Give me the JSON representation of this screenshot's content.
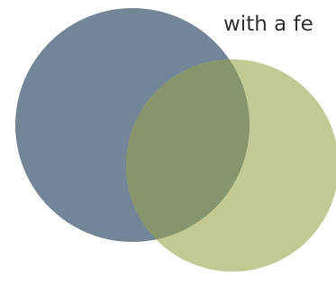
{
  "caption": "with a fe",
  "colors": {
    "circle_left": "#728697",
    "circle_right": "#c3c995",
    "overlap": "#87956c",
    "background": "#ffffff"
  }
}
